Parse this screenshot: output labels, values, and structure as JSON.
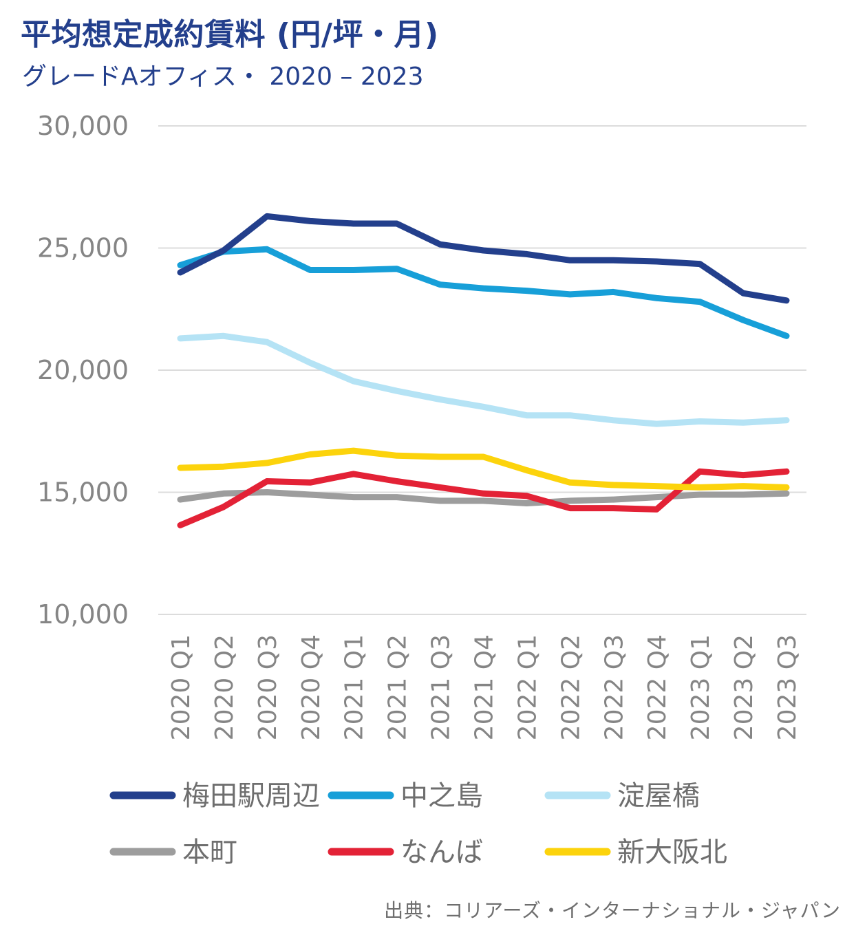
{
  "chart_data": {
    "type": "line",
    "title": "平均想定成約賃料 (円/坪・月)",
    "subtitle": "グレードAオフィス・ 2020 – 2023",
    "categories": [
      "2020 Q1",
      "2020 Q2",
      "2020 Q3",
      "2020 Q4",
      "2021 Q1",
      "2021 Q2",
      "2021 Q3",
      "2021 Q4",
      "2022 Q1",
      "2022 Q2",
      "2022 Q3",
      "2022 Q4",
      "2023 Q1",
      "2023 Q2",
      "2023 Q3"
    ],
    "ylim": [
      10000,
      30000
    ],
    "yticks": [
      10000,
      15000,
      20000,
      25000,
      30000
    ],
    "ytick_labels": [
      "10,000",
      "15,000",
      "20,000",
      "25,000",
      "30,000"
    ],
    "grid": true,
    "legend_position": "bottom",
    "series": [
      {
        "name": "梅田駅周辺",
        "color": "#233f8c",
        "values": [
          24000,
          24900,
          26300,
          26100,
          26000,
          26000,
          25150,
          24900,
          24750,
          24500,
          24500,
          24450,
          24350,
          23150,
          22850
        ]
      },
      {
        "name": "中之島",
        "color": "#179fd8",
        "values": [
          24300,
          24850,
          24950,
          24100,
          24100,
          24150,
          23500,
          23350,
          23250,
          23100,
          23200,
          22950,
          22800,
          22050,
          21400
        ]
      },
      {
        "name": "淀屋橋",
        "color": "#b5e3f5",
        "values": [
          21300,
          21400,
          21150,
          20300,
          19550,
          19150,
          18800,
          18500,
          18150,
          18150,
          17950,
          17800,
          17900,
          17850,
          17950
        ]
      },
      {
        "name": "本町",
        "color": "#9d9d9d",
        "values": [
          14700,
          14950,
          15000,
          14900,
          14800,
          14800,
          14650,
          14650,
          14550,
          14650,
          14700,
          14800,
          14900,
          14900,
          14950
        ]
      },
      {
        "name": "なんば",
        "color": "#e32236",
        "values": [
          13650,
          14400,
          15450,
          15400,
          15750,
          15450,
          15200,
          14950,
          14850,
          14350,
          14350,
          14300,
          15850,
          15700,
          15850
        ]
      },
      {
        "name": "新大阪北",
        "color": "#fcd30c",
        "values": [
          16000,
          16050,
          16200,
          16550,
          16700,
          16500,
          16450,
          16450,
          15900,
          15400,
          15300,
          15250,
          15200,
          15250,
          15200
        ]
      }
    ]
  },
  "source": "出典：コリアーズ・インターナショナル・ジャパン"
}
